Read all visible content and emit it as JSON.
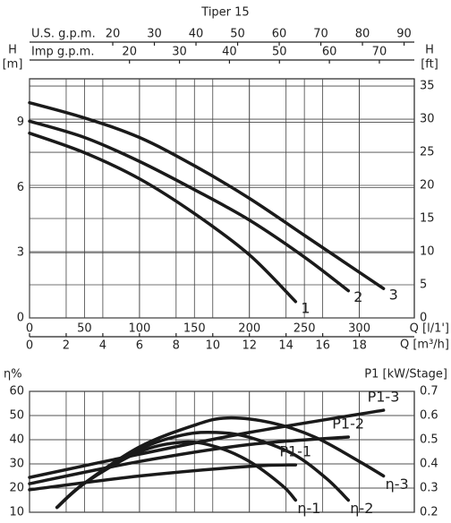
{
  "chart_data": [
    {
      "type": "line",
      "title": "Tiper 15",
      "xlabel": "Q [l/1']",
      "xlim": [
        0,
        350
      ],
      "xticks": [
        0,
        50,
        100,
        150,
        200,
        250,
        300
      ],
      "x2label": "Q [m³/h]",
      "x2lim": [
        0,
        21
      ],
      "x2ticks": [
        0,
        2,
        4,
        6,
        8,
        10,
        12,
        14,
        16,
        18
      ],
      "x3label": "U.S. g.p.m.",
      "x3lim": [
        0,
        92.46
      ],
      "x3ticks": [
        20,
        30,
        40,
        50,
        60,
        70,
        80,
        90
      ],
      "x4label": "Imp g.p.m.",
      "x4lim": [
        0,
        76.99
      ],
      "x4ticks": [
        20,
        30,
        40,
        50,
        60,
        70
      ],
      "ylabel": "H",
      "yunit": "[m]",
      "ylim": [
        0,
        11
      ],
      "yticks": [
        0,
        3,
        6,
        9
      ],
      "y2label": "H",
      "y2unit": "[ft]",
      "y2lim": [
        0,
        36.09
      ],
      "y2ticks": [
        0,
        5,
        10,
        15,
        20,
        25,
        30,
        35
      ],
      "grid": true,
      "series": [
        {
          "name": "1",
          "color": "#1a1a1a",
          "x": [
            0,
            50,
            100,
            150,
            200,
            242
          ],
          "values": [
            8.5,
            7.6,
            6.4,
            4.8,
            2.9,
            0.75
          ]
        },
        {
          "name": "2",
          "color": "#1a1a1a",
          "x": [
            0,
            50,
            100,
            150,
            200,
            250,
            290
          ],
          "values": [
            9.05,
            8.3,
            7.2,
            5.9,
            4.5,
            2.8,
            1.25
          ]
        },
        {
          "name": "3",
          "color": "#1a1a1a",
          "x": [
            0,
            50,
            100,
            150,
            200,
            250,
            300,
            322
          ],
          "values": [
            9.9,
            9.2,
            8.3,
            7.0,
            5.5,
            3.8,
            2.1,
            1.35
          ]
        }
      ]
    },
    {
      "type": "line",
      "xlim": [
        0,
        350
      ],
      "ylabel": "η%",
      "ylim": [
        10,
        60
      ],
      "yticks": [
        10,
        20,
        30,
        40,
        50,
        60
      ],
      "y2label": "P1 [kW/Stage]",
      "y2lim": [
        0.2,
        0.7
      ],
      "y2ticks": [
        0.2,
        0.3,
        0.4,
        0.5,
        0.6,
        0.7
      ],
      "grid": true,
      "series": [
        {
          "name": "η-1",
          "color": "#1a1a1a",
          "x": [
            25,
            50,
            100,
            140,
            170,
            200,
            230,
            242
          ],
          "values": [
            12,
            22,
            35,
            39,
            37,
            31,
            21,
            15
          ]
        },
        {
          "name": "η-2",
          "color": "#1a1a1a",
          "x": [
            25,
            50,
            100,
            140,
            170,
            200,
            240,
            270,
            290
          ],
          "values": [
            12,
            22,
            36,
            42,
            43,
            41,
            34,
            24,
            15
          ]
        },
        {
          "name": "η-3",
          "color": "#1a1a1a",
          "x": [
            25,
            50,
            100,
            150,
            180,
            220,
            260,
            300,
            322
          ],
          "values": [
            12,
            22,
            37,
            46,
            49,
            47,
            41,
            31,
            25
          ]
        },
        {
          "name": "P1-1",
          "color": "#1a1a1a",
          "axis": "y2",
          "x": [
            0,
            100,
            200,
            242
          ],
          "values": [
            0.293,
            0.35,
            0.39,
            0.396
          ]
        },
        {
          "name": "P1-2",
          "color": "#1a1a1a",
          "axis": "y2",
          "x": [
            0,
            100,
            200,
            290
          ],
          "values": [
            0.318,
            0.41,
            0.48,
            0.511
          ]
        },
        {
          "name": "P1-3",
          "color": "#1a1a1a",
          "axis": "y2",
          "x": [
            0,
            100,
            200,
            322
          ],
          "values": [
            0.344,
            0.44,
            0.53,
            0.622
          ]
        }
      ]
    }
  ]
}
